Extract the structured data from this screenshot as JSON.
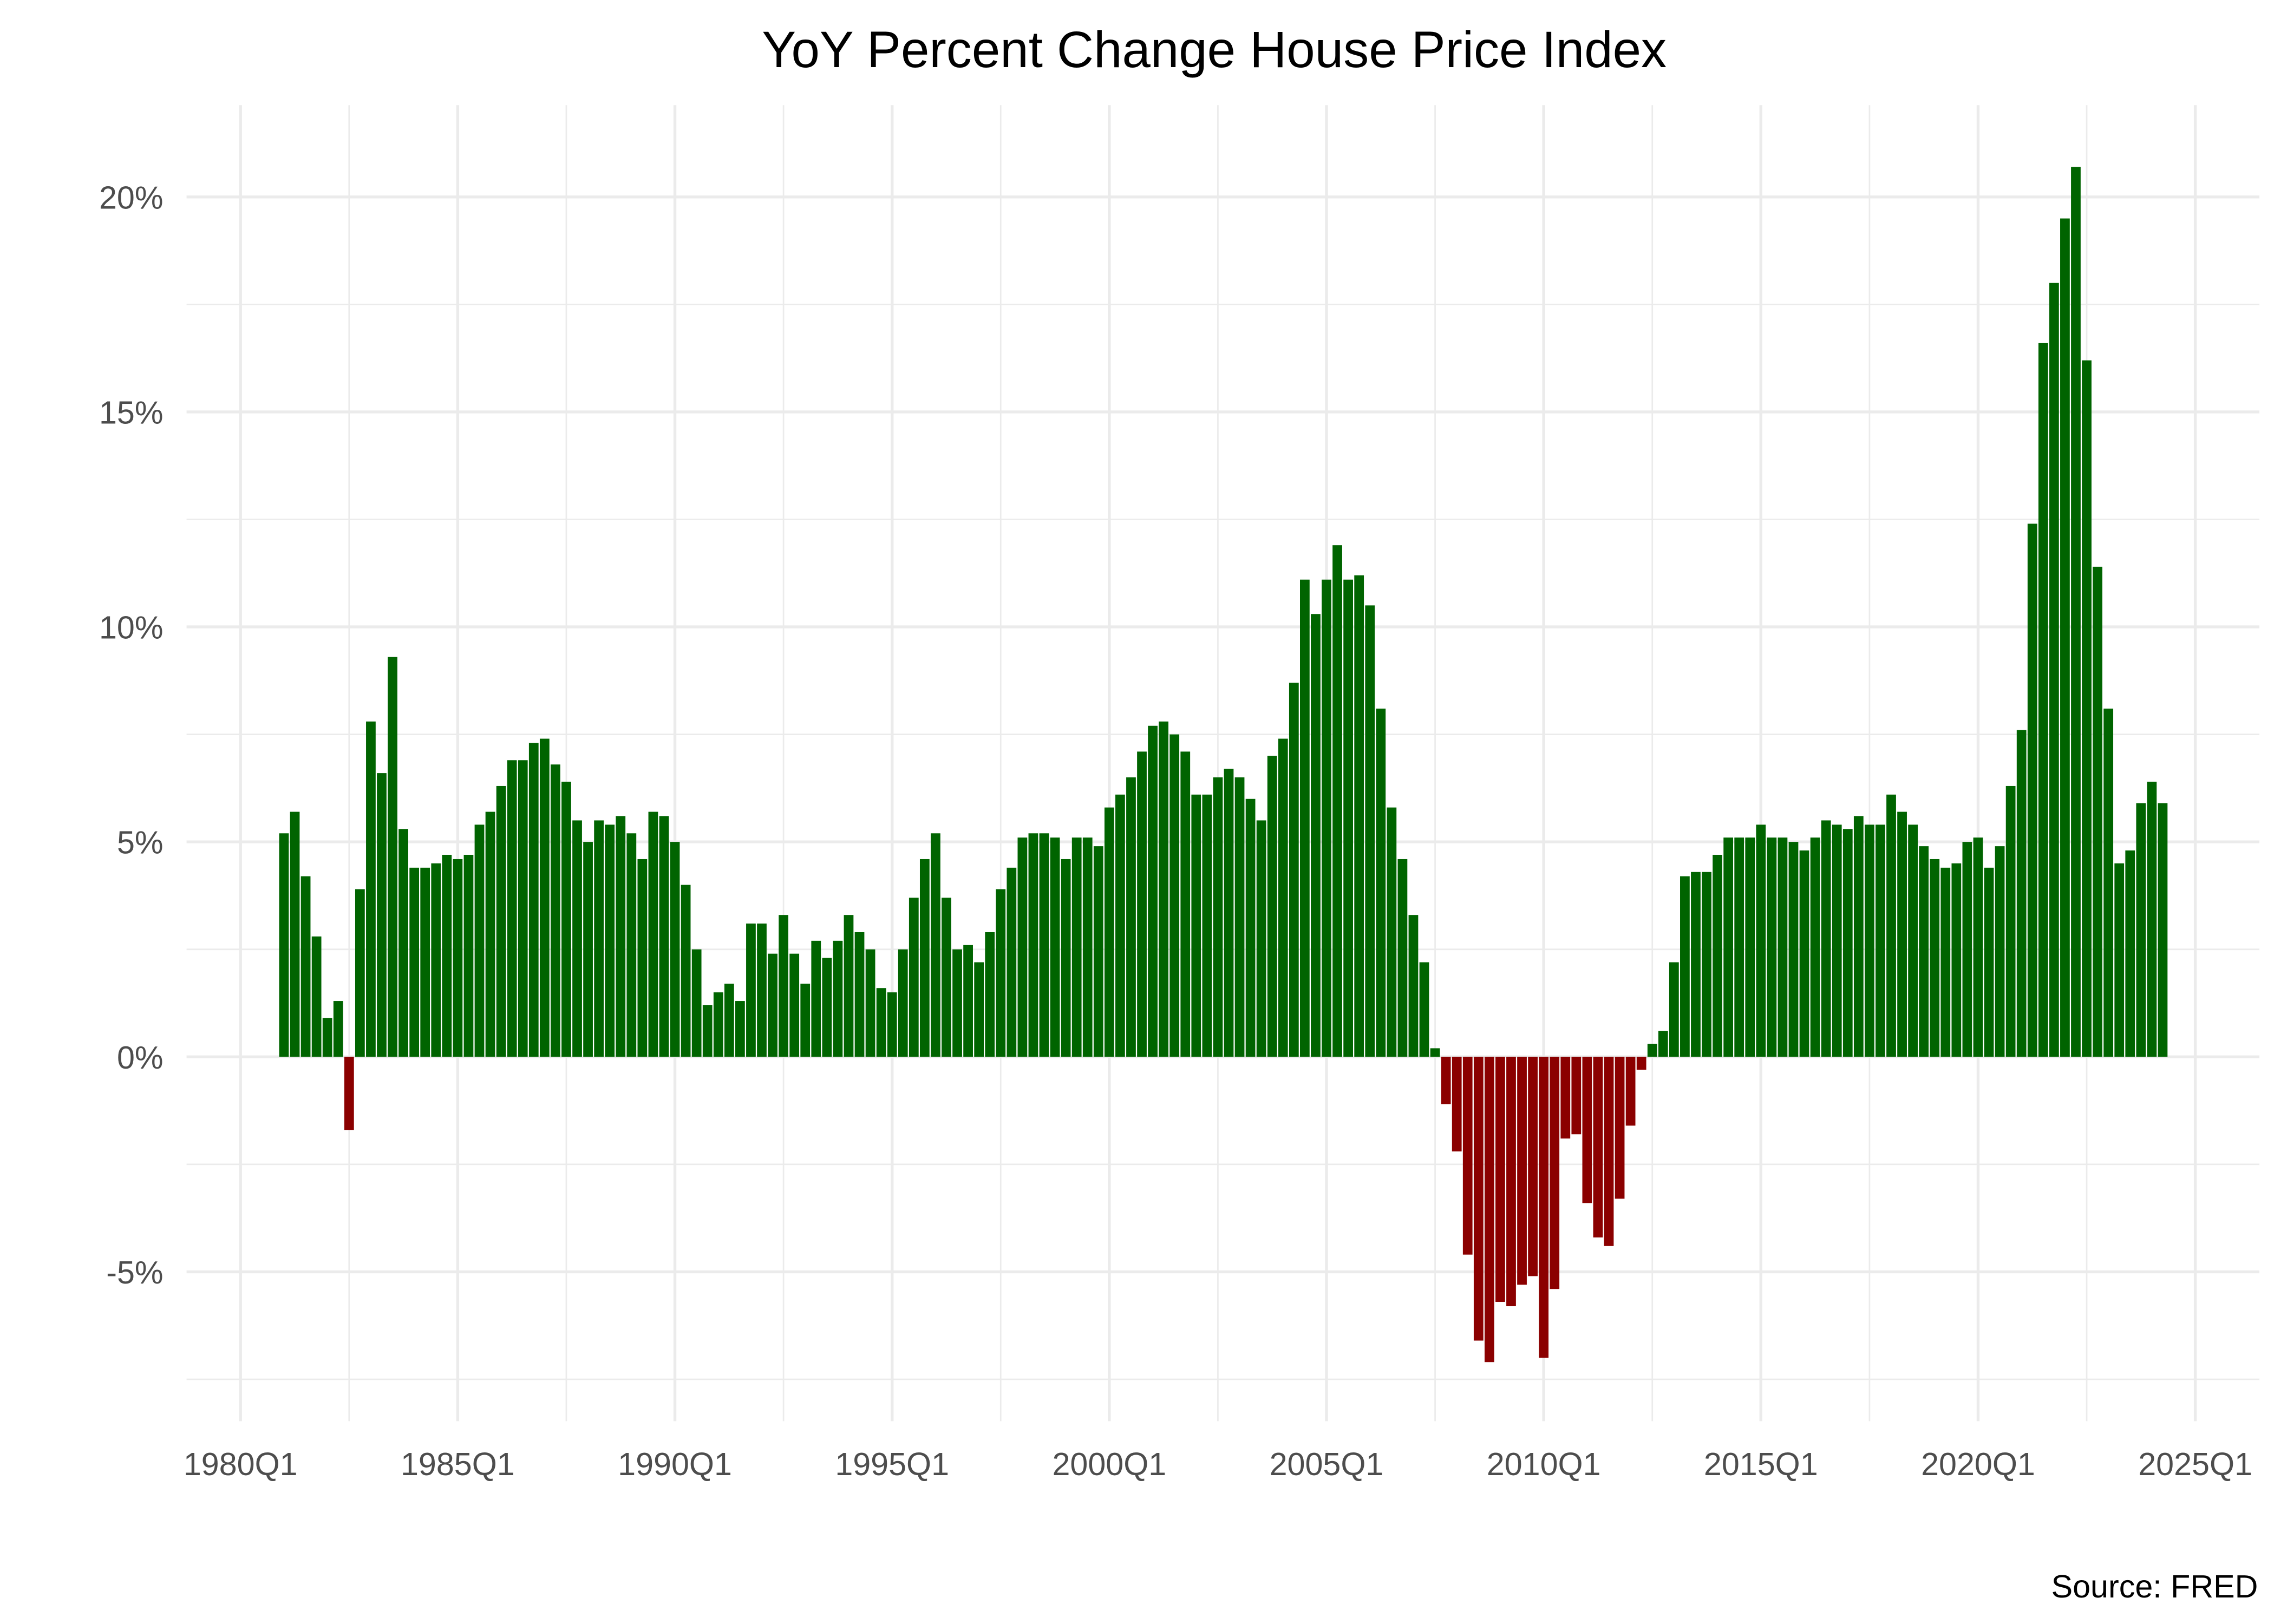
{
  "chart_data": {
    "type": "bar",
    "title": "YoY Percent Change House Price Index",
    "caption": "Source: FRED",
    "xlabel": "",
    "ylabel": "",
    "start_quarter": "1981Q1",
    "frequency": "quarterly",
    "x_ticks": [
      "1980Q1",
      "1985Q1",
      "1990Q1",
      "1995Q1",
      "2000Q1",
      "2005Q1",
      "2010Q1",
      "2015Q1",
      "2020Q1",
      "2025Q1"
    ],
    "y_ticks": [
      -5,
      0,
      5,
      10,
      15,
      20
    ],
    "y_tick_labels": [
      "-5%",
      "0%",
      "5%",
      "10%",
      "15%",
      "20%"
    ],
    "ylim": [
      -8.3,
      22.2
    ],
    "grid": true,
    "colors": {
      "positive": "#006400",
      "negative": "#8b0000",
      "grid": "#ebebeb"
    },
    "values": [
      5.2,
      5.7,
      4.2,
      2.8,
      0.9,
      1.3,
      -1.7,
      3.9,
      7.8,
      6.6,
      9.3,
      5.3,
      4.4,
      4.4,
      4.5,
      4.7,
      4.6,
      4.7,
      5.4,
      5.7,
      6.3,
      6.9,
      6.9,
      7.3,
      7.4,
      6.8,
      6.4,
      5.5,
      5.0,
      5.5,
      5.4,
      5.6,
      5.2,
      4.6,
      5.7,
      5.6,
      5.0,
      4.0,
      2.5,
      1.2,
      1.5,
      1.7,
      1.3,
      3.1,
      3.1,
      2.4,
      3.3,
      2.4,
      1.7,
      2.7,
      2.3,
      2.7,
      3.3,
      2.9,
      2.5,
      1.6,
      1.5,
      2.5,
      3.7,
      4.6,
      5.2,
      3.7,
      2.5,
      2.6,
      2.2,
      2.9,
      3.9,
      4.4,
      5.1,
      5.2,
      5.2,
      5.1,
      4.6,
      5.1,
      5.1,
      4.9,
      5.8,
      6.1,
      6.5,
      7.1,
      7.7,
      7.8,
      7.5,
      7.1,
      6.1,
      6.1,
      6.5,
      6.7,
      6.5,
      6.0,
      5.5,
      7.0,
      7.4,
      8.7,
      11.1,
      10.3,
      11.1,
      11.9,
      11.1,
      11.2,
      10.5,
      8.1,
      5.8,
      4.6,
      3.3,
      2.2,
      0.2,
      -1.1,
      -2.2,
      -4.6,
      -6.6,
      -7.1,
      -5.7,
      -5.8,
      -5.3,
      -5.1,
      -7.0,
      -5.4,
      -1.9,
      -1.8,
      -3.4,
      -4.2,
      -4.4,
      -3.3,
      -1.6,
      -0.3,
      0.3,
      0.6,
      2.2,
      4.2,
      4.3,
      4.3,
      4.7,
      5.1,
      5.1,
      5.1,
      5.4,
      5.1,
      5.1,
      5.0,
      4.8,
      5.1,
      5.5,
      5.4,
      5.3,
      5.6,
      5.4,
      5.4,
      6.1,
      5.7,
      5.4,
      4.9,
      4.6,
      4.4,
      4.5,
      5.0,
      5.1,
      4.4,
      4.9,
      6.3,
      7.6,
      12.4,
      16.6,
      18.0,
      19.5,
      20.7,
      16.2,
      11.4,
      8.1,
      4.5,
      4.8,
      5.9,
      6.4,
      5.9
    ]
  }
}
